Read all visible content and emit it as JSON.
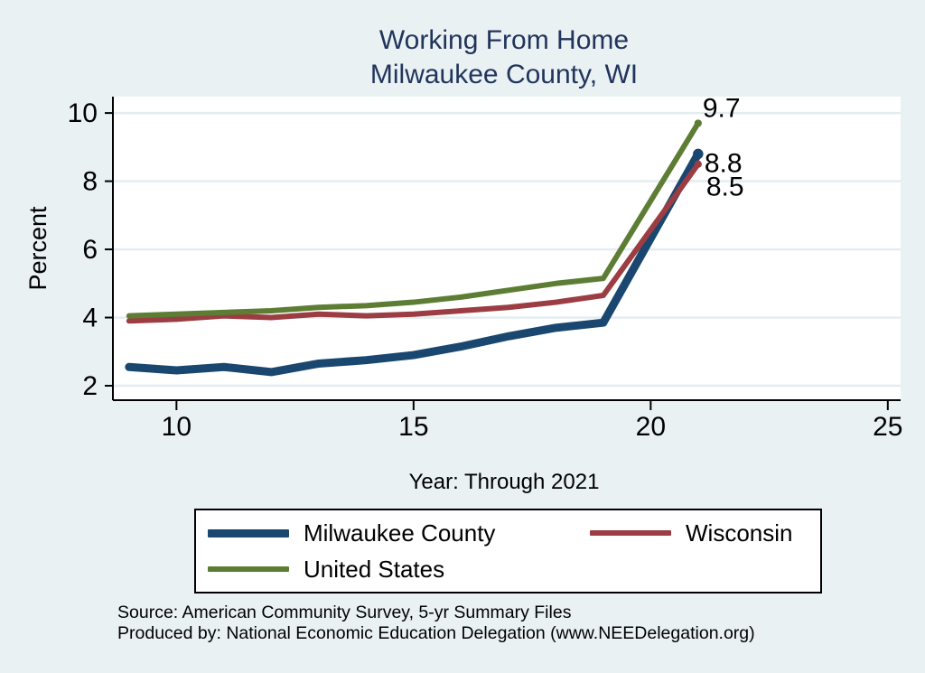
{
  "title": {
    "line1": "Working From Home",
    "line2": "Milwaukee County, WI"
  },
  "axes": {
    "ylabel": "Percent",
    "xlabel": "Year: Through 2021"
  },
  "source": {
    "line1": "Source: American Community Survey, 5-yr Summary Files",
    "line2": "Produced by: National Economic Education Delegation (www.NEEDelegation.org)"
  },
  "colors": {
    "canvas_background": "#eaf1f3",
    "plot_background": "#ffffff",
    "grid": "#e2ecf1",
    "axis": "#000000",
    "title_text": "#21345c",
    "milwaukee_county": "#1a476f",
    "wisconsin": "#9b3d42",
    "united_states": "#5c7d33"
  },
  "chart_data": {
    "type": "line",
    "title": "Working From Home — Milwaukee County, WI",
    "xlabel": "Year: Through 2021",
    "ylabel": "Percent",
    "x": [
      9,
      10,
      11,
      12,
      13,
      14,
      15,
      16,
      17,
      18,
      19,
      21
    ],
    "series": [
      {
        "name": "Milwaukee County",
        "color": "#1a476f",
        "line_width": 9,
        "values": [
          2.55,
          2.45,
          2.55,
          2.4,
          2.65,
          2.75,
          2.9,
          3.15,
          3.45,
          3.7,
          3.85,
          8.8
        ],
        "end_label": "8.8"
      },
      {
        "name": "Wisconsin",
        "color": "#9b3d42",
        "line_width": 6,
        "values": [
          3.9,
          3.95,
          4.05,
          4.0,
          4.1,
          4.05,
          4.1,
          4.2,
          4.3,
          4.45,
          4.65,
          8.5
        ],
        "end_label": "8.5"
      },
      {
        "name": "United States",
        "color": "#5c7d33",
        "line_width": 6,
        "values": [
          4.05,
          4.1,
          4.15,
          4.2,
          4.3,
          4.35,
          4.45,
          4.6,
          4.8,
          5.0,
          5.15,
          9.7
        ],
        "end_label": "9.7"
      }
    ],
    "x_ticks": [
      10,
      15,
      20,
      25
    ],
    "y_ticks": [
      2,
      4,
      6,
      8,
      10
    ],
    "xlim": [
      8.66,
      25.27
    ],
    "ylim": [
      1.576,
      10.48
    ],
    "grid": "horizontal-only",
    "legend_position": "bottom"
  }
}
